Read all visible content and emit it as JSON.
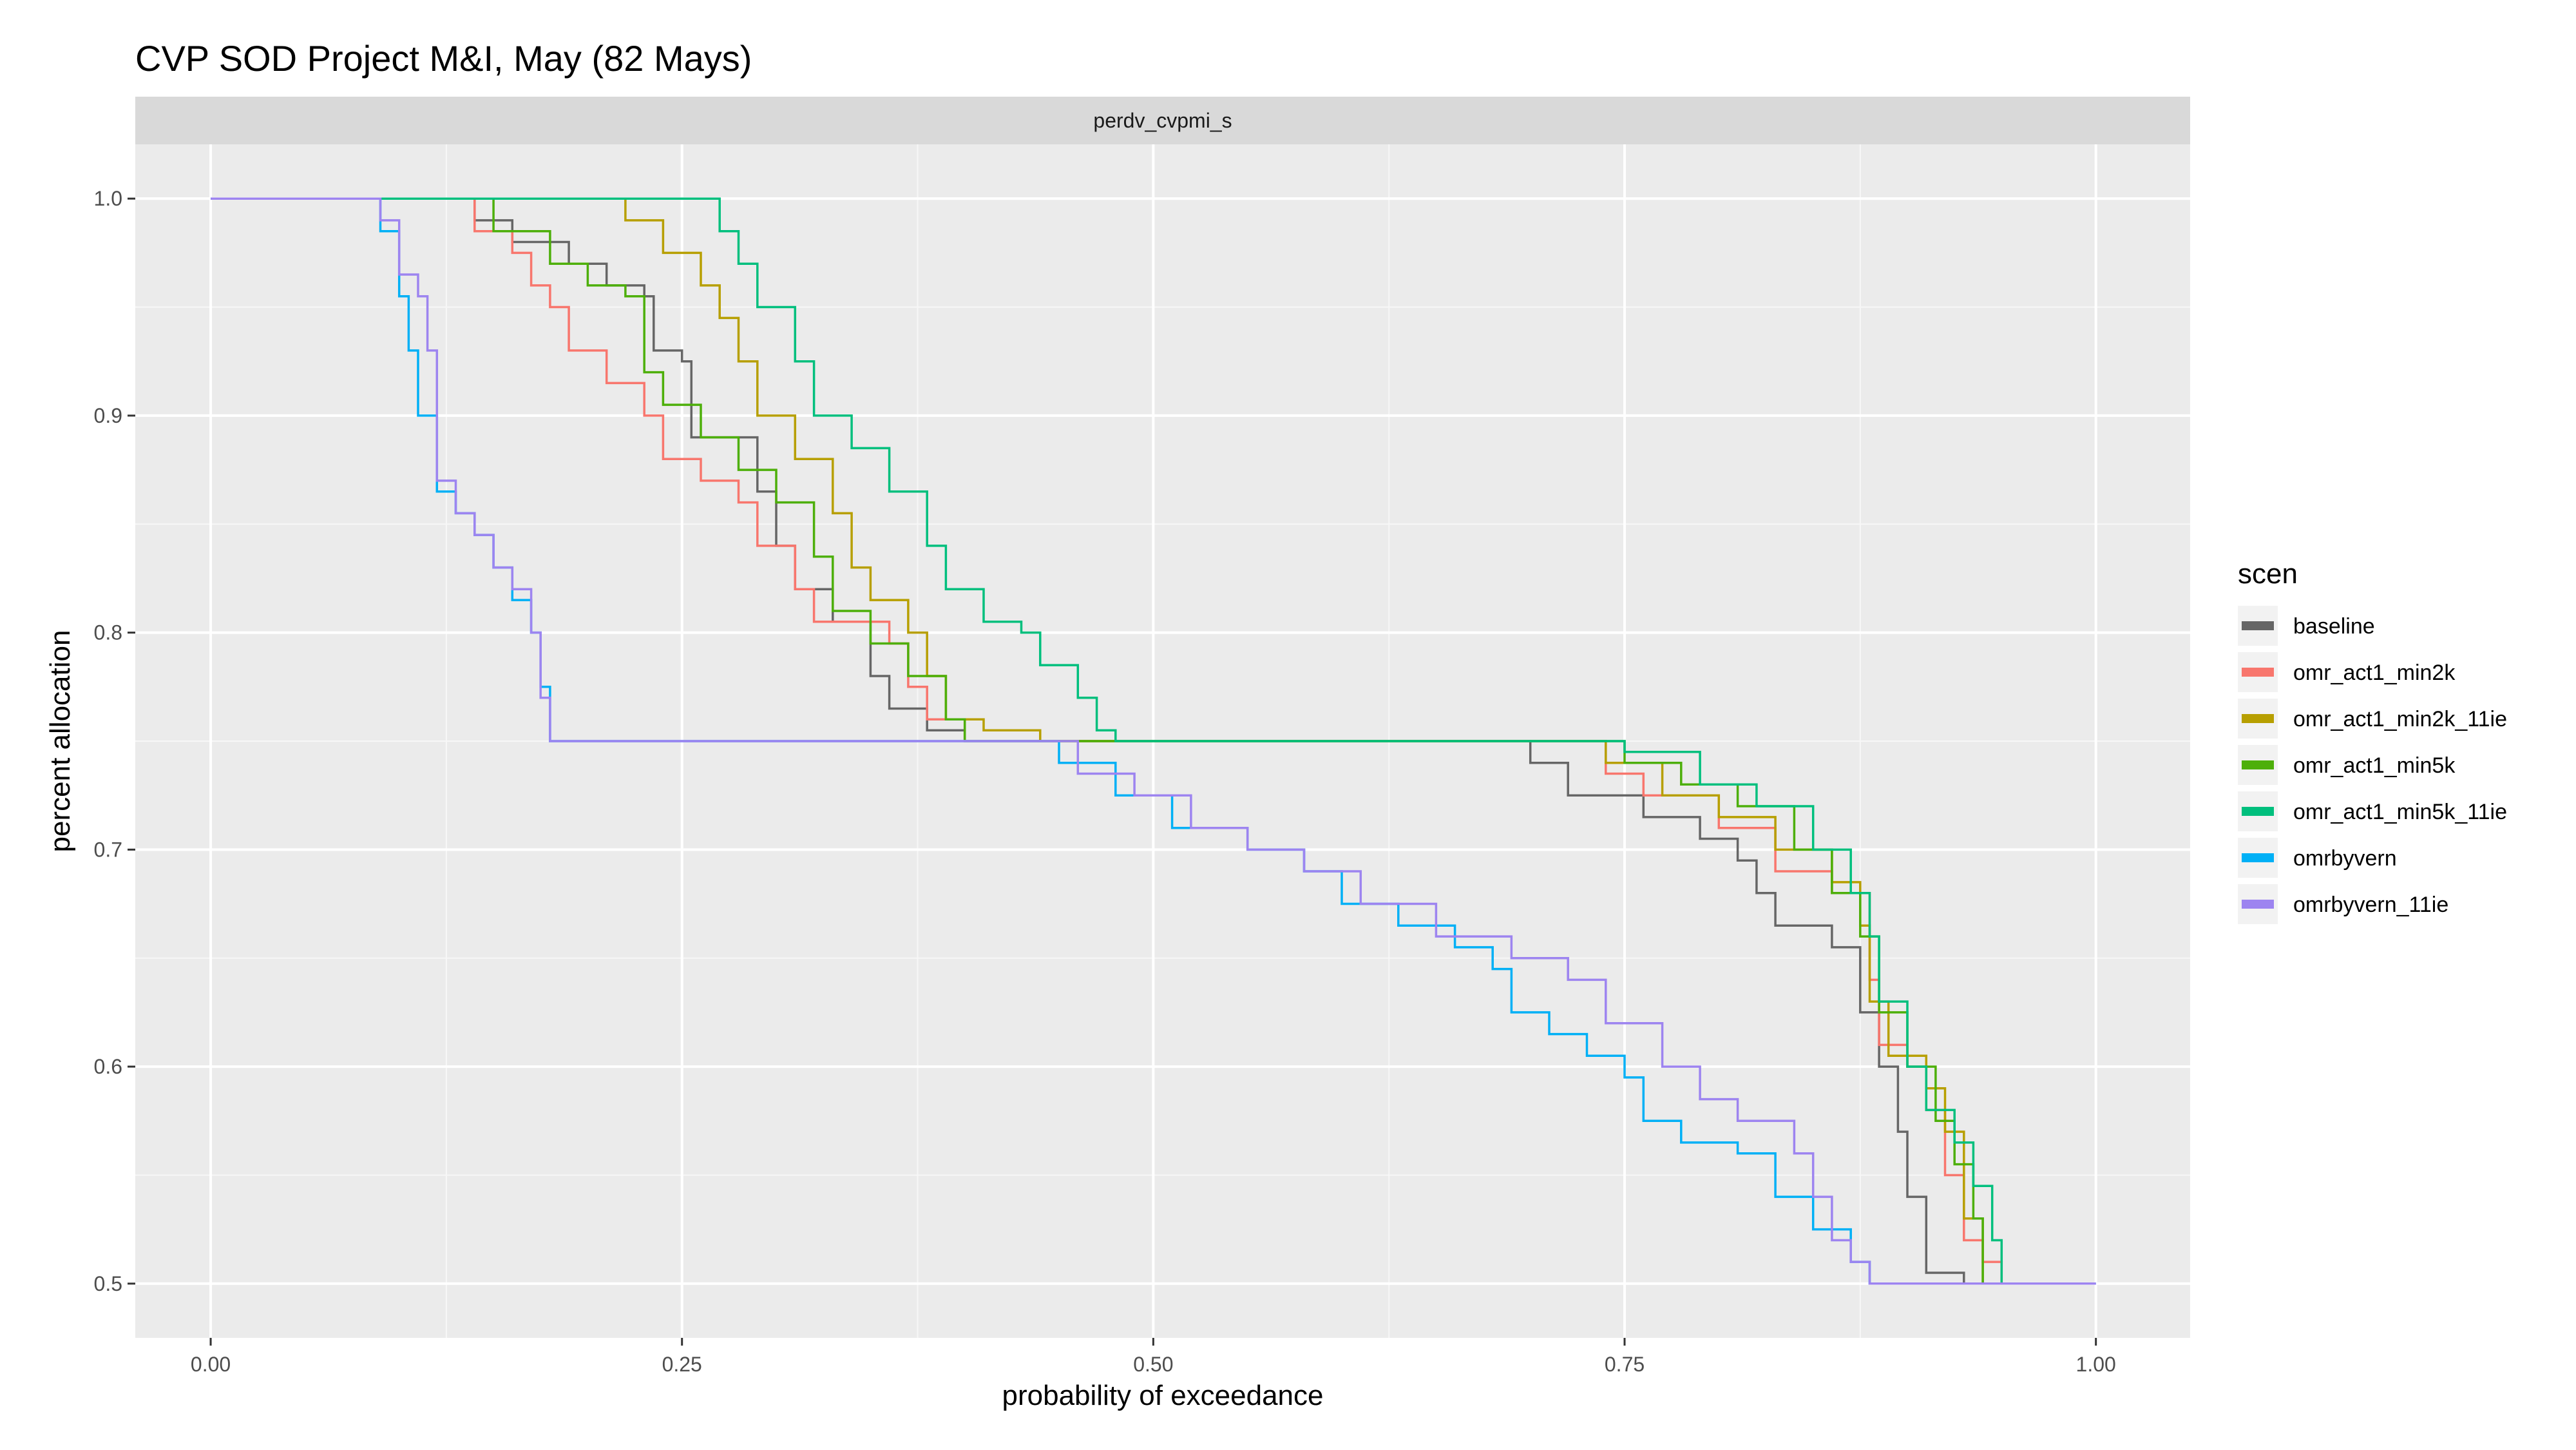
{
  "chart_data": {
    "type": "line",
    "title": "CVP SOD Project M&I, May (82 Mays)",
    "facet": "perdv_cvpmi_s",
    "xlabel": "probability of exceedance",
    "ylabel": "percent allocation",
    "xlim": [
      -0.04,
      1.05
    ],
    "ylim": [
      0.475,
      1.025
    ],
    "x_ticks": [
      0.0,
      0.25,
      0.5,
      0.75,
      1.0
    ],
    "x_tick_labels": [
      "0.00",
      "0.25",
      "0.50",
      "0.75",
      "1.00"
    ],
    "y_ticks": [
      0.5,
      0.6,
      0.7,
      0.8,
      0.9,
      1.0
    ],
    "y_tick_labels": [
      "0.5",
      "0.6",
      "0.7",
      "0.8",
      "0.9",
      "1.0"
    ],
    "grid": true,
    "legend": {
      "title": "scen",
      "position": "right"
    },
    "series": [
      {
        "name": "baseline",
        "color": "#666666",
        "points": [
          [
            0.0,
            1.0
          ],
          [
            0.13,
            1.0
          ],
          [
            0.14,
            0.99
          ],
          [
            0.16,
            0.98
          ],
          [
            0.19,
            0.97
          ],
          [
            0.21,
            0.96
          ],
          [
            0.23,
            0.955
          ],
          [
            0.235,
            0.93
          ],
          [
            0.25,
            0.925
          ],
          [
            0.255,
            0.89
          ],
          [
            0.29,
            0.865
          ],
          [
            0.3,
            0.84
          ],
          [
            0.31,
            0.82
          ],
          [
            0.33,
            0.805
          ],
          [
            0.35,
            0.78
          ],
          [
            0.36,
            0.765
          ],
          [
            0.38,
            0.755
          ],
          [
            0.4,
            0.75
          ],
          [
            0.69,
            0.75
          ],
          [
            0.7,
            0.74
          ],
          [
            0.72,
            0.725
          ],
          [
            0.76,
            0.715
          ],
          [
            0.79,
            0.705
          ],
          [
            0.81,
            0.695
          ],
          [
            0.82,
            0.68
          ],
          [
            0.83,
            0.665
          ],
          [
            0.86,
            0.655
          ],
          [
            0.875,
            0.625
          ],
          [
            0.885,
            0.6
          ],
          [
            0.895,
            0.57
          ],
          [
            0.9,
            0.54
          ],
          [
            0.91,
            0.505
          ],
          [
            0.93,
            0.5
          ]
        ]
      },
      {
        "name": "omr_act1_min2k",
        "color": "#F8766D",
        "points": [
          [
            0.0,
            1.0
          ],
          [
            0.13,
            1.0
          ],
          [
            0.14,
            0.985
          ],
          [
            0.16,
            0.975
          ],
          [
            0.17,
            0.96
          ],
          [
            0.18,
            0.95
          ],
          [
            0.19,
            0.93
          ],
          [
            0.21,
            0.915
          ],
          [
            0.23,
            0.9
          ],
          [
            0.24,
            0.88
          ],
          [
            0.26,
            0.87
          ],
          [
            0.28,
            0.86
          ],
          [
            0.29,
            0.84
          ],
          [
            0.31,
            0.82
          ],
          [
            0.32,
            0.805
          ],
          [
            0.36,
            0.795
          ],
          [
            0.37,
            0.775
          ],
          [
            0.38,
            0.76
          ],
          [
            0.4,
            0.75
          ],
          [
            0.73,
            0.75
          ],
          [
            0.74,
            0.735
          ],
          [
            0.76,
            0.725
          ],
          [
            0.8,
            0.71
          ],
          [
            0.83,
            0.69
          ],
          [
            0.86,
            0.68
          ],
          [
            0.88,
            0.64
          ],
          [
            0.885,
            0.61
          ],
          [
            0.9,
            0.6
          ],
          [
            0.91,
            0.58
          ],
          [
            0.92,
            0.55
          ],
          [
            0.93,
            0.52
          ],
          [
            0.94,
            0.51
          ],
          [
            0.95,
            0.5
          ]
        ]
      },
      {
        "name": "omr_act1_min2k_11ie",
        "color": "#B79F00",
        "points": [
          [
            0.0,
            1.0
          ],
          [
            0.2,
            1.0
          ],
          [
            0.22,
            0.99
          ],
          [
            0.24,
            0.975
          ],
          [
            0.26,
            0.96
          ],
          [
            0.27,
            0.945
          ],
          [
            0.28,
            0.925
          ],
          [
            0.29,
            0.9
          ],
          [
            0.31,
            0.88
          ],
          [
            0.33,
            0.855
          ],
          [
            0.34,
            0.83
          ],
          [
            0.35,
            0.815
          ],
          [
            0.37,
            0.8
          ],
          [
            0.38,
            0.78
          ],
          [
            0.39,
            0.76
          ],
          [
            0.41,
            0.755
          ],
          [
            0.44,
            0.75
          ],
          [
            0.73,
            0.75
          ],
          [
            0.74,
            0.74
          ],
          [
            0.77,
            0.725
          ],
          [
            0.8,
            0.715
          ],
          [
            0.83,
            0.7
          ],
          [
            0.86,
            0.685
          ],
          [
            0.875,
            0.665
          ],
          [
            0.88,
            0.63
          ],
          [
            0.89,
            0.605
          ],
          [
            0.91,
            0.59
          ],
          [
            0.92,
            0.57
          ],
          [
            0.93,
            0.53
          ],
          [
            0.94,
            0.5
          ]
        ]
      },
      {
        "name": "omr_act1_min5k",
        "color": "#4DAF0A",
        "points": [
          [
            0.0,
            1.0
          ],
          [
            0.13,
            1.0
          ],
          [
            0.15,
            0.985
          ],
          [
            0.18,
            0.97
          ],
          [
            0.2,
            0.96
          ],
          [
            0.22,
            0.955
          ],
          [
            0.23,
            0.92
          ],
          [
            0.24,
            0.905
          ],
          [
            0.26,
            0.89
          ],
          [
            0.28,
            0.875
          ],
          [
            0.3,
            0.86
          ],
          [
            0.32,
            0.835
          ],
          [
            0.33,
            0.81
          ],
          [
            0.35,
            0.795
          ],
          [
            0.37,
            0.78
          ],
          [
            0.39,
            0.76
          ],
          [
            0.4,
            0.75
          ],
          [
            0.73,
            0.75
          ],
          [
            0.75,
            0.74
          ],
          [
            0.78,
            0.73
          ],
          [
            0.81,
            0.72
          ],
          [
            0.84,
            0.7
          ],
          [
            0.86,
            0.68
          ],
          [
            0.875,
            0.66
          ],
          [
            0.885,
            0.625
          ],
          [
            0.9,
            0.6
          ],
          [
            0.915,
            0.575
          ],
          [
            0.925,
            0.555
          ],
          [
            0.935,
            0.53
          ],
          [
            0.94,
            0.5
          ]
        ]
      },
      {
        "name": "omr_act1_min5k_11ie",
        "color": "#00BF7D",
        "points": [
          [
            0.0,
            1.0
          ],
          [
            0.26,
            1.0
          ],
          [
            0.27,
            0.985
          ],
          [
            0.28,
            0.97
          ],
          [
            0.29,
            0.95
          ],
          [
            0.31,
            0.925
          ],
          [
            0.32,
            0.9
          ],
          [
            0.34,
            0.885
          ],
          [
            0.36,
            0.865
          ],
          [
            0.38,
            0.84
          ],
          [
            0.39,
            0.82
          ],
          [
            0.41,
            0.805
          ],
          [
            0.43,
            0.8
          ],
          [
            0.44,
            0.785
          ],
          [
            0.46,
            0.77
          ],
          [
            0.47,
            0.755
          ],
          [
            0.48,
            0.75
          ],
          [
            0.73,
            0.75
          ],
          [
            0.75,
            0.745
          ],
          [
            0.79,
            0.73
          ],
          [
            0.82,
            0.72
          ],
          [
            0.85,
            0.7
          ],
          [
            0.87,
            0.68
          ],
          [
            0.88,
            0.66
          ],
          [
            0.885,
            0.63
          ],
          [
            0.9,
            0.6
          ],
          [
            0.91,
            0.58
          ],
          [
            0.925,
            0.565
          ],
          [
            0.935,
            0.545
          ],
          [
            0.945,
            0.52
          ],
          [
            0.95,
            0.5
          ]
        ]
      },
      {
        "name": "omrbyvern",
        "color": "#00B0F6",
        "points": [
          [
            0.0,
            1.0
          ],
          [
            0.08,
            1.0
          ],
          [
            0.09,
            0.985
          ],
          [
            0.1,
            0.955
          ],
          [
            0.105,
            0.93
          ],
          [
            0.11,
            0.9
          ],
          [
            0.12,
            0.865
          ],
          [
            0.13,
            0.855
          ],
          [
            0.14,
            0.845
          ],
          [
            0.15,
            0.83
          ],
          [
            0.16,
            0.815
          ],
          [
            0.17,
            0.8
          ],
          [
            0.175,
            0.775
          ],
          [
            0.18,
            0.75
          ],
          [
            0.44,
            0.75
          ],
          [
            0.45,
            0.74
          ],
          [
            0.48,
            0.725
          ],
          [
            0.51,
            0.71
          ],
          [
            0.55,
            0.7
          ],
          [
            0.58,
            0.69
          ],
          [
            0.6,
            0.675
          ],
          [
            0.63,
            0.665
          ],
          [
            0.66,
            0.655
          ],
          [
            0.68,
            0.645
          ],
          [
            0.69,
            0.625
          ],
          [
            0.71,
            0.615
          ],
          [
            0.73,
            0.605
          ],
          [
            0.75,
            0.595
          ],
          [
            0.76,
            0.575
          ],
          [
            0.78,
            0.565
          ],
          [
            0.81,
            0.56
          ],
          [
            0.83,
            0.54
          ],
          [
            0.85,
            0.525
          ],
          [
            0.87,
            0.51
          ],
          [
            0.88,
            0.5
          ],
          [
            1.0,
            0.5
          ]
        ]
      },
      {
        "name": "omrbyvern_11ie",
        "color": "#9D84F0",
        "points": [
          [
            0.0,
            1.0
          ],
          [
            0.08,
            1.0
          ],
          [
            0.09,
            0.99
          ],
          [
            0.1,
            0.965
          ],
          [
            0.11,
            0.955
          ],
          [
            0.115,
            0.93
          ],
          [
            0.12,
            0.87
          ],
          [
            0.13,
            0.855
          ],
          [
            0.14,
            0.845
          ],
          [
            0.15,
            0.83
          ],
          [
            0.16,
            0.82
          ],
          [
            0.17,
            0.8
          ],
          [
            0.175,
            0.77
          ],
          [
            0.18,
            0.75
          ],
          [
            0.44,
            0.75
          ],
          [
            0.46,
            0.735
          ],
          [
            0.49,
            0.725
          ],
          [
            0.52,
            0.71
          ],
          [
            0.55,
            0.7
          ],
          [
            0.58,
            0.69
          ],
          [
            0.61,
            0.675
          ],
          [
            0.65,
            0.66
          ],
          [
            0.69,
            0.65
          ],
          [
            0.72,
            0.64
          ],
          [
            0.74,
            0.62
          ],
          [
            0.77,
            0.6
          ],
          [
            0.79,
            0.585
          ],
          [
            0.81,
            0.575
          ],
          [
            0.84,
            0.56
          ],
          [
            0.85,
            0.54
          ],
          [
            0.86,
            0.52
          ],
          [
            0.87,
            0.51
          ],
          [
            0.88,
            0.5
          ],
          [
            1.0,
            0.5
          ]
        ]
      }
    ]
  }
}
